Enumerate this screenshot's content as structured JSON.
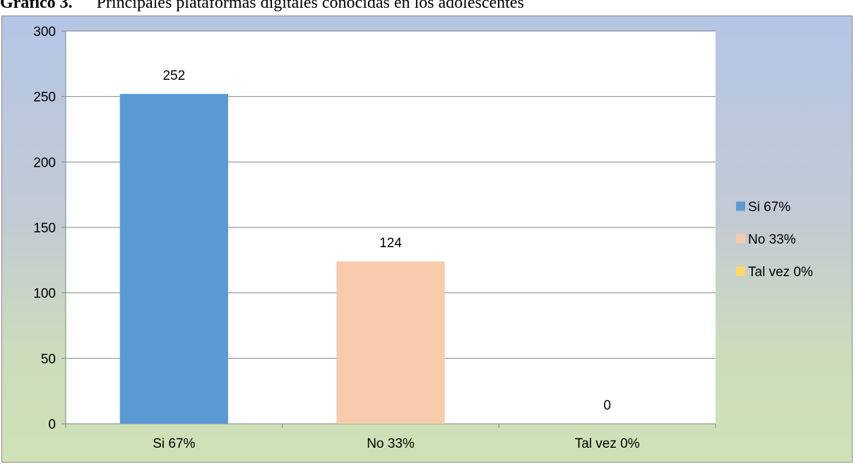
{
  "caption": {
    "label": "Gráfico 3.",
    "title": "Principales plataformas digitales conocidas en los adolescentes"
  },
  "colors": {
    "background_top": "#b4c6e6",
    "background_bottom": "#cfe2b6",
    "plot_area": "#ffffff",
    "gridline": "#868686"
  },
  "chart_data": {
    "type": "bar",
    "title": "",
    "xlabel": "",
    "ylabel": "",
    "ylim": [
      0,
      300
    ],
    "yticks": [
      0,
      50,
      100,
      150,
      200,
      250,
      300
    ],
    "grid": true,
    "legend_position": "right",
    "categories": [
      "Si 67%",
      "No 33%",
      "Tal vez 0%"
    ],
    "values": [
      252,
      124,
      0
    ],
    "value_labels": [
      "252",
      "124",
      "0"
    ],
    "colors": [
      "#5b9bd5",
      "#f8cbad",
      "#ffd966"
    ],
    "legend": [
      "Si 67%",
      "No 33%",
      "Tal vez 0%"
    ]
  }
}
